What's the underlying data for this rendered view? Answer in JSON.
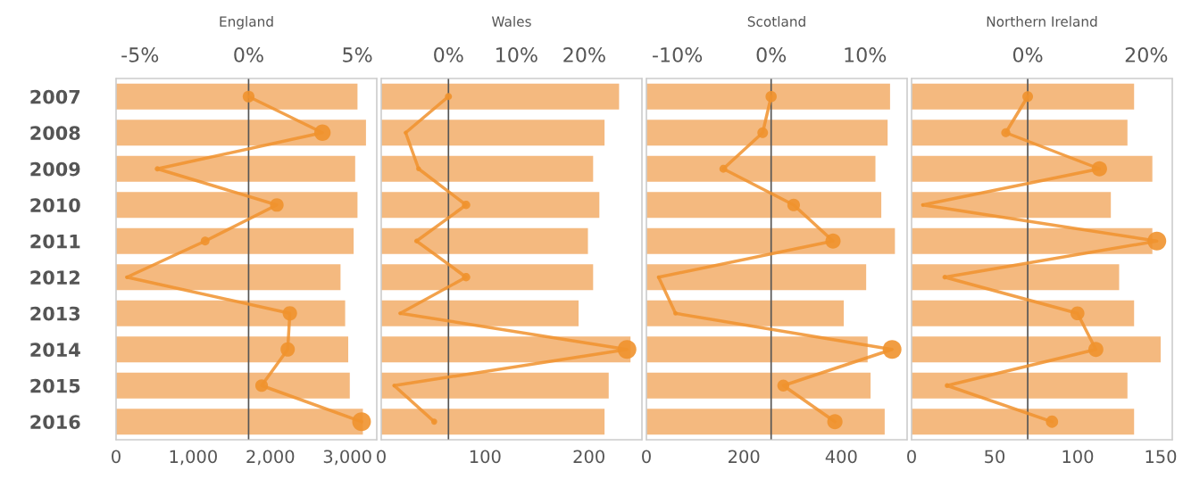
{
  "chart_data": [
    {
      "type": "bar",
      "orientation": "horizontal",
      "title": "England",
      "categories": [
        "2007",
        "2008",
        "2009",
        "2010",
        "2011",
        "2012",
        "2013",
        "2014",
        "2015",
        "2016"
      ],
      "xlim": [
        0,
        3380
      ],
      "xticks": [
        {
          "value": 0,
          "label": "0"
        },
        {
          "value": 1000,
          "label": "1,000"
        },
        {
          "value": 2000,
          "label": "2,000"
        },
        {
          "value": 3000,
          "label": "3,000"
        }
      ],
      "x2lim": [
        -6.1,
        5.9
      ],
      "x2ticks": [
        {
          "value": -5,
          "label": "-5%"
        },
        {
          "value": 0,
          "label": "0%"
        },
        {
          "value": 5,
          "label": "5%"
        }
      ],
      "marker": "circle",
      "ref_lines": [
        {
          "axis": "x2",
          "value": 0,
          "color": "#555555"
        }
      ],
      "series": [
        {
          "color": "#f4b97f",
          "values": [
            3130,
            3240,
            3100,
            3130,
            3080,
            2910,
            2970,
            3010,
            3030,
            3200
          ]
        },
        {
          "type": "line",
          "axis": "x2",
          "color": "#f0922e",
          "values": [
            0,
            3.4,
            -4.2,
            1.3,
            -2.0,
            -5.6,
            1.9,
            1.8,
            0.6,
            5.2
          ]
        }
      ]
    },
    {
      "type": "bar",
      "orientation": "horizontal",
      "title": "Wales",
      "categories": [
        "2007",
        "2008",
        "2009",
        "2010",
        "2011",
        "2012",
        "2013",
        "2014",
        "2015",
        "2016"
      ],
      "tick_labels": "x",
      "xlim": [
        0,
        251
      ],
      "xticks": [
        0,
        100,
        200
      ],
      "x2lim": [
        -9.9,
        28.5
      ],
      "x2ticks": [
        {
          "value": 0,
          "label": "0%"
        },
        {
          "value": 10,
          "label": "10%"
        },
        {
          "value": 20,
          "label": "20%"
        }
      ],
      "marker": "circle",
      "ref_lines": [
        {
          "axis": "x2",
          "value": 0,
          "color": "#555555"
        }
      ],
      "series": [
        {
          "color": "#f4b97f",
          "values": [
            229,
            215,
            204,
            210,
            199,
            204,
            190,
            240,
            219,
            215
          ]
        },
        {
          "type": "line",
          "axis": "x2",
          "color": "#f0922e",
          "values": [
            0,
            -6.3,
            -4.4,
            2.6,
            -4.7,
            2.6,
            -7.1,
            26.3,
            -8.0,
            -2.1
          ]
        }
      ]
    },
    {
      "type": "bar",
      "orientation": "horizontal",
      "title": "Scotland",
      "categories": [
        "2007",
        "2008",
        "2009",
        "2010",
        "2011",
        "2012",
        "2013",
        "2014",
        "2015",
        "2016"
      ],
      "tick_labels": "x",
      "xlim": [
        0,
        535
      ],
      "xticks": [
        0,
        200,
        400
      ],
      "x2lim": [
        -13.3,
        14.5
      ],
      "x2ticks": [
        {
          "value": -10,
          "label": "-10%"
        },
        {
          "value": 0,
          "label": "0%"
        },
        {
          "value": 10,
          "label": "10%"
        }
      ],
      "marker": "circle",
      "ref_lines": [
        {
          "axis": "x2",
          "value": 0,
          "color": "#555555"
        }
      ],
      "series": [
        {
          "color": "#f4b97f",
          "values": [
            500,
            495,
            470,
            482,
            510,
            451,
            405,
            454,
            460,
            489
          ]
        },
        {
          "type": "line",
          "axis": "x2",
          "color": "#f0922e",
          "values": [
            0,
            -0.9,
            -5.1,
            2.4,
            6.6,
            -12.0,
            -10.2,
            12.9,
            1.3,
            6.8
          ]
        }
      ]
    },
    {
      "type": "bar",
      "orientation": "horizontal",
      "title": "Northern Ireland",
      "categories": [
        "2007",
        "2008",
        "2009",
        "2010",
        "2011",
        "2012",
        "2013",
        "2014",
        "2015",
        "2016"
      ],
      "tick_labels": "x",
      "xlim": [
        0,
        157
      ],
      "xticks": [
        0,
        50,
        100,
        150
      ],
      "x2lim": [
        -19.6,
        24.4
      ],
      "x2ticks": [
        {
          "value": 0,
          "label": "0%"
        },
        {
          "value": 20,
          "label": "20%"
        }
      ],
      "marker": "circle",
      "ref_lines": [
        {
          "axis": "x2",
          "value": 0,
          "color": "#555555"
        }
      ],
      "series": [
        {
          "color": "#f4b97f",
          "values": [
            134,
            130,
            145,
            120,
            145,
            125,
            134,
            150,
            130,
            134
          ]
        },
        {
          "type": "line",
          "axis": "x2",
          "color": "#f0922e",
          "values": [
            0,
            -3.7,
            12.1,
            -17.7,
            21.8,
            -14.0,
            8.4,
            11.5,
            -13.6,
            4.1
          ]
        }
      ]
    }
  ]
}
